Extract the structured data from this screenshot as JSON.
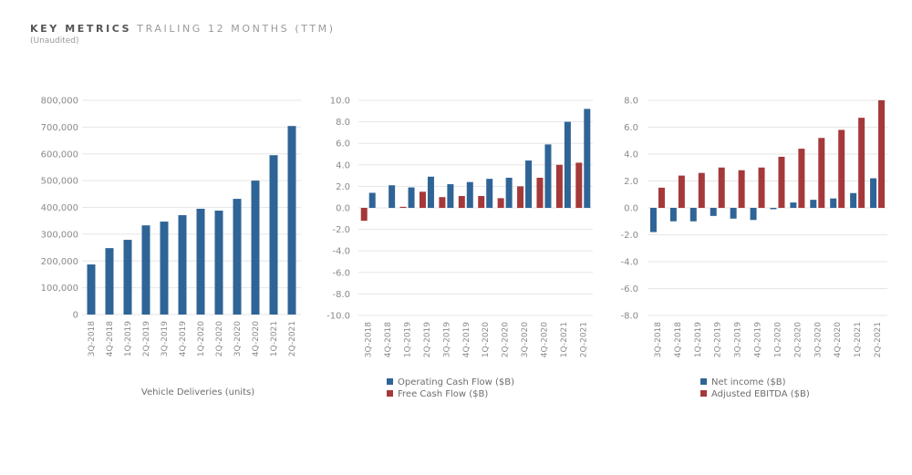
{
  "header": {
    "title_strong": "KEY METRICS",
    "title_rest": "TRAILING 12 MONTHS (TTM)",
    "subtitle": "(Unaudited)"
  },
  "colors": {
    "blue": "#2f6496",
    "red": "#a5393a",
    "grid": "#e6e6e6"
  },
  "chart_data": [
    {
      "type": "bar",
      "title": "",
      "xlabel": "Vehicle Deliveries (units)",
      "ylabel": "",
      "ylim": [
        0,
        800000
      ],
      "yticks": [
        0,
        100000,
        200000,
        300000,
        400000,
        500000,
        600000,
        700000,
        800000
      ],
      "ytick_labels": [
        "0",
        "100,000",
        "200,000",
        "300,000",
        "400,000",
        "500,000",
        "600,000",
        "700,000",
        "800,000"
      ],
      "grid": true,
      "categories": [
        "3Q-2018",
        "4Q-2018",
        "1Q-2019",
        "2Q-2019",
        "3Q-2019",
        "4Q-2019",
        "1Q-2020",
        "2Q-2020",
        "3Q-2020",
        "4Q-2020",
        "1Q-2021",
        "2Q-2021"
      ],
      "series": [
        {
          "name": "Vehicle Deliveries (units)",
          "color": "#2f6496",
          "values": [
            187000,
            248000,
            279000,
            333000,
            347000,
            371000,
            395000,
            388000,
            432000,
            500000,
            595000,
            704000
          ]
        }
      ],
      "legend": "none"
    },
    {
      "type": "bar",
      "title": "",
      "xlabel": "",
      "ylabel": "",
      "ylim": [
        -10,
        10
      ],
      "yticks": [
        -10,
        -8,
        -6,
        -4,
        -2,
        0,
        2,
        4,
        6,
        8,
        10
      ],
      "ytick_labels": [
        "-10.0",
        "-8.0",
        "-6.0",
        "-4.0",
        "-2.0",
        "0.0",
        "2.0",
        "4.0",
        "6.0",
        "8.0",
        "10.0"
      ],
      "grid": true,
      "categories": [
        "3Q-2018",
        "4Q-2018",
        "1Q-2019",
        "2Q-2019",
        "3Q-2019",
        "4Q-2019",
        "1Q-2020",
        "2Q-2020",
        "3Q-2020",
        "4Q-2020",
        "1Q-2021",
        "2Q-2021"
      ],
      "bar_order": [
        "Free Cash Flow ($B)",
        "Operating Cash Flow ($B)"
      ],
      "series": [
        {
          "name": "Operating Cash Flow ($B)",
          "color": "#2f6496",
          "values": [
            1.4,
            2.1,
            1.9,
            2.9,
            2.2,
            2.4,
            2.7,
            2.8,
            4.4,
            5.9,
            8.0,
            9.2
          ]
        },
        {
          "name": "Free Cash Flow ($B)",
          "color": "#a5393a",
          "values": [
            -1.2,
            0.0,
            0.1,
            1.5,
            1.0,
            1.1,
            1.1,
            0.9,
            2.0,
            2.8,
            4.0,
            4.2
          ]
        }
      ],
      "legend": "bottom"
    },
    {
      "type": "bar",
      "title": "",
      "xlabel": "",
      "ylabel": "",
      "ylim": [
        -8,
        8
      ],
      "yticks": [
        -8,
        -6,
        -4,
        -2,
        0,
        2,
        4,
        6,
        8
      ],
      "ytick_labels": [
        "-8.0",
        "-6.0",
        "-4.0",
        "-2.0",
        "0.0",
        "2.0",
        "4.0",
        "6.0",
        "8.0"
      ],
      "grid": true,
      "categories": [
        "3Q-2018",
        "4Q-2018",
        "1Q-2019",
        "2Q-2019",
        "3Q-2019",
        "4Q-2019",
        "1Q-2020",
        "2Q-2020",
        "3Q-2020",
        "4Q-2020",
        "1Q-2021",
        "2Q-2021"
      ],
      "bar_order": [
        "Net income ($B)",
        "Adjusted EBITDA ($B)"
      ],
      "series": [
        {
          "name": "Net income ($B)",
          "color": "#2f6496",
          "values": [
            -1.8,
            -1.0,
            -1.0,
            -0.6,
            -0.8,
            -0.9,
            -0.1,
            0.4,
            0.6,
            0.7,
            1.1,
            2.2
          ]
        },
        {
          "name": "Adjusted EBITDA ($B)",
          "color": "#a5393a",
          "values": [
            1.5,
            2.4,
            2.6,
            3.0,
            2.8,
            3.0,
            3.8,
            4.4,
            5.2,
            5.8,
            6.7,
            8.0
          ]
        }
      ],
      "legend": "bottom"
    }
  ]
}
